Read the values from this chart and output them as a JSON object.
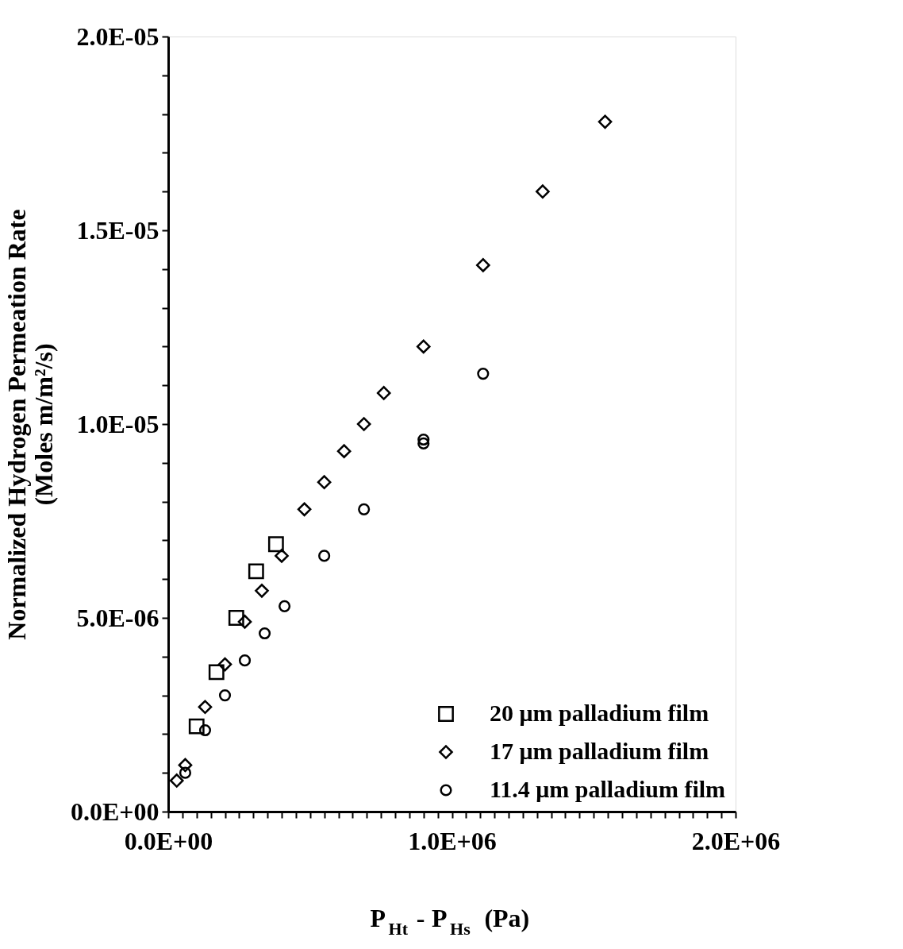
{
  "chart_data": {
    "type": "scatter",
    "xlabel": "P$_{Ht}$ - P$_{Hs}$  (Pa)",
    "ylabel": "Normalized Hydrogen Permeation Rate\n(Moles m/m²/s)",
    "xlim": [
      0,
      2000000
    ],
    "ylim": [
      0,
      2e-05
    ],
    "xticks": [
      {
        "value": 0,
        "label": "0.0E+00"
      },
      {
        "value": 50000,
        "label": null
      },
      {
        "value": 100000,
        "label": null
      },
      {
        "value": 150000,
        "label": null
      },
      {
        "value": 200000,
        "label": null
      },
      {
        "value": 250000,
        "label": null
      },
      {
        "value": 300000,
        "label": null
      },
      {
        "value": 350000,
        "label": null
      },
      {
        "value": 400000,
        "label": null
      },
      {
        "value": 450000,
        "label": null
      },
      {
        "value": 500000,
        "label": null
      },
      {
        "value": 550000,
        "label": null
      },
      {
        "value": 600000,
        "label": null
      },
      {
        "value": 650000,
        "label": null
      },
      {
        "value": 700000,
        "label": null
      },
      {
        "value": 750000,
        "label": null
      },
      {
        "value": 800000,
        "label": null
      },
      {
        "value": 850000,
        "label": null
      },
      {
        "value": 900000,
        "label": null
      },
      {
        "value": 950000,
        "label": null
      },
      {
        "value": 1000000,
        "label": "1.0E+06"
      },
      {
        "value": 1050000,
        "label": null
      },
      {
        "value": 1100000,
        "label": null
      },
      {
        "value": 1150000,
        "label": null
      },
      {
        "value": 1200000,
        "label": null
      },
      {
        "value": 1250000,
        "label": null
      },
      {
        "value": 1300000,
        "label": null
      },
      {
        "value": 1350000,
        "label": null
      },
      {
        "value": 1400000,
        "label": null
      },
      {
        "value": 1450000,
        "label": null
      },
      {
        "value": 1500000,
        "label": null
      },
      {
        "value": 1550000,
        "label": null
      },
      {
        "value": 1600000,
        "label": null
      },
      {
        "value": 1650000,
        "label": null
      },
      {
        "value": 1700000,
        "label": null
      },
      {
        "value": 1750000,
        "label": null
      },
      {
        "value": 1800000,
        "label": null
      },
      {
        "value": 1850000,
        "label": null
      },
      {
        "value": 1900000,
        "label": null
      },
      {
        "value": 1950000,
        "label": null
      },
      {
        "value": 2000000,
        "label": "2.0E+06"
      }
    ],
    "yticks": [
      {
        "value": 0,
        "label": "0.0E+00"
      },
      {
        "value": 1e-06,
        "label": null
      },
      {
        "value": 2e-06,
        "label": null
      },
      {
        "value": 3e-06,
        "label": null
      },
      {
        "value": 4e-06,
        "label": null
      },
      {
        "value": 5e-06,
        "label": "5.0E-06"
      },
      {
        "value": 6e-06,
        "label": null
      },
      {
        "value": 7e-06,
        "label": null
      },
      {
        "value": 8e-06,
        "label": null
      },
      {
        "value": 9e-06,
        "label": null
      },
      {
        "value": 1e-05,
        "label": "1.0E-05"
      },
      {
        "value": 1.1e-05,
        "label": null
      },
      {
        "value": 1.2e-05,
        "label": null
      },
      {
        "value": 1.3e-05,
        "label": null
      },
      {
        "value": 1.4e-05,
        "label": null
      },
      {
        "value": 1.5e-05,
        "label": "1.5E-05"
      },
      {
        "value": 1.6e-05,
        "label": null
      },
      {
        "value": 1.7e-05,
        "label": null
      },
      {
        "value": 1.8e-05,
        "label": null
      },
      {
        "value": 1.9e-05,
        "label": null
      },
      {
        "value": 2e-05,
        "label": "2.0E-05"
      }
    ],
    "grid": false,
    "legend": "bottom right",
    "series": [
      {
        "name": "20 μm palladium film",
        "color": "#000000",
        "marker": "square",
        "x": [
          100000,
          170000,
          240000,
          310000,
          380000
        ],
        "values": [
          2.2e-06,
          3.6e-06,
          5e-06,
          6.2e-06,
          6.9e-06
        ]
      },
      {
        "name": "17 μm palladium film",
        "color": "#000000",
        "marker": "diamond",
        "x": [
          30000,
          60000,
          130000,
          200000,
          270000,
          330000,
          400000,
          480000,
          550000,
          620000,
          690000,
          760000,
          900000,
          1110000,
          1320000,
          1540000
        ],
        "values": [
          8e-07,
          1.2e-06,
          2.7e-06,
          3.8e-06,
          4.9e-06,
          5.7e-06,
          6.6e-06,
          7.8e-06,
          8.5e-06,
          9.3e-06,
          1e-05,
          1.08e-05,
          1.2e-05,
          1.41e-05,
          1.6e-05,
          1.78e-05
        ]
      },
      {
        "name": "11.4 μm palladium film",
        "color": "#000000",
        "marker": "circle",
        "x": [
          60000,
          130000,
          200000,
          270000,
          340000,
          410000,
          550000,
          690000,
          900000,
          900000,
          1110000
        ],
        "values": [
          1e-06,
          2.1e-06,
          3e-06,
          3.9e-06,
          4.6e-06,
          5.3e-06,
          6.6e-06,
          7.8e-06,
          9.5e-06,
          9.6e-06,
          1.13e-05
        ]
      }
    ]
  }
}
